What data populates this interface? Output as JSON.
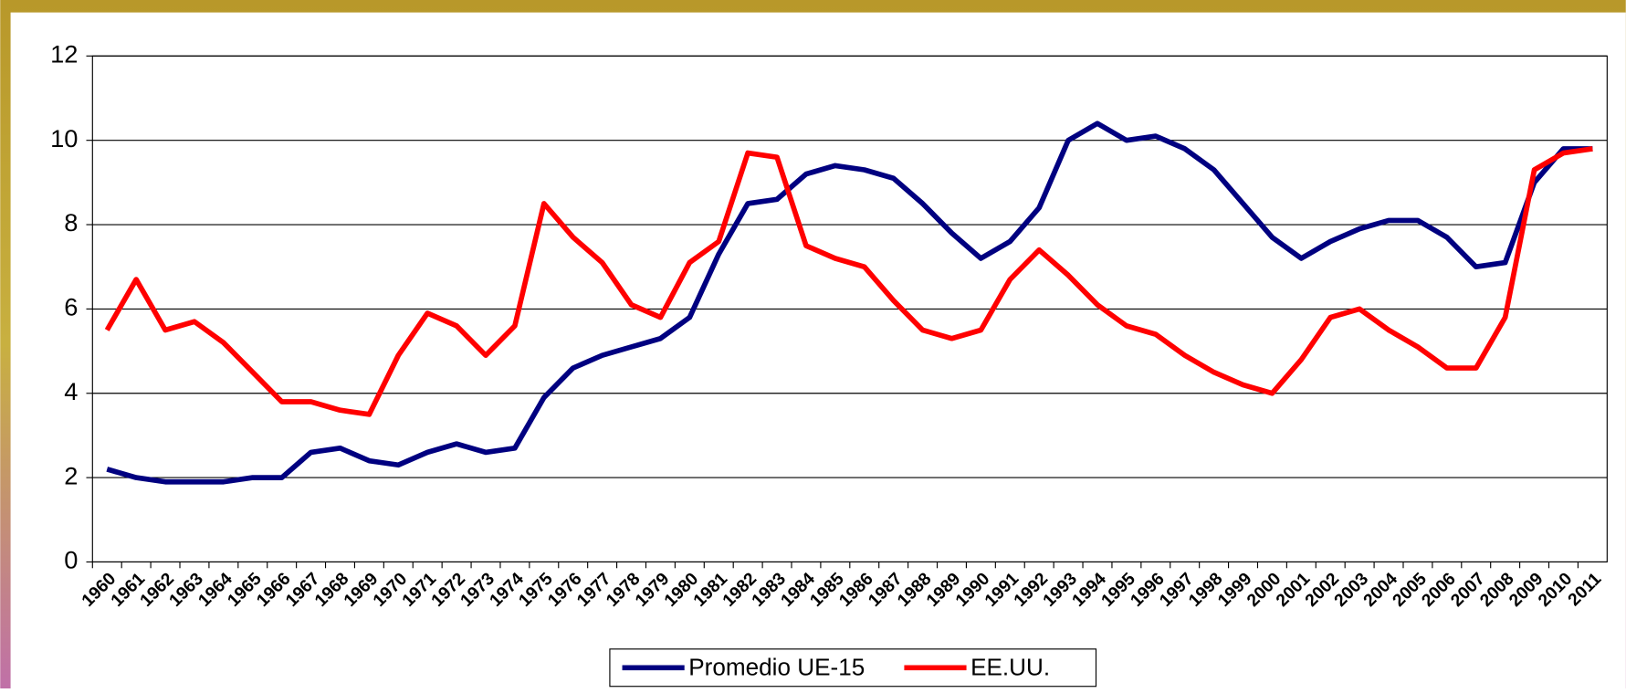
{
  "chart_data": {
    "type": "line",
    "categories": [
      "1960",
      "1961",
      "1962",
      "1963",
      "1964",
      "1965",
      "1966",
      "1967",
      "1968",
      "1969",
      "1970",
      "1971",
      "1972",
      "1973",
      "1974",
      "1975",
      "1976",
      "1977",
      "1978",
      "1979",
      "1980",
      "1981",
      "1982",
      "1983",
      "1984",
      "1985",
      "1986",
      "1987",
      "1988",
      "1989",
      "1990",
      "1991",
      "1992",
      "1993",
      "1994",
      "1995",
      "1996",
      "1997",
      "1998",
      "1999",
      "2000",
      "2001",
      "2002",
      "2003",
      "2004",
      "2005",
      "2006",
      "2007",
      "2008",
      "2009",
      "2010",
      "2011"
    ],
    "series": [
      {
        "name": "Promedio UE-15",
        "color": "#000080",
        "values": [
          2.2,
          2.0,
          1.9,
          1.9,
          1.9,
          2.0,
          2.0,
          2.6,
          2.7,
          2.4,
          2.3,
          2.6,
          2.8,
          2.6,
          2.7,
          3.9,
          4.6,
          4.9,
          5.1,
          5.3,
          5.8,
          7.3,
          8.5,
          8.6,
          9.2,
          9.4,
          9.3,
          9.1,
          8.5,
          7.8,
          7.2,
          7.6,
          8.4,
          10.0,
          10.4,
          10.0,
          10.1,
          9.8,
          9.3,
          8.5,
          7.7,
          7.2,
          7.6,
          7.9,
          8.1,
          8.1,
          7.7,
          7.0,
          7.1,
          9.0,
          9.8,
          9.8
        ]
      },
      {
        "name": "EE.UU.",
        "color": "#ff0000",
        "values": [
          5.5,
          6.7,
          5.5,
          5.7,
          5.2,
          4.5,
          3.8,
          3.8,
          3.6,
          3.5,
          4.9,
          5.9,
          5.6,
          4.9,
          5.6,
          8.5,
          7.7,
          7.1,
          6.1,
          5.8,
          7.1,
          7.6,
          9.7,
          9.6,
          7.5,
          7.2,
          7.0,
          6.2,
          5.5,
          5.3,
          5.5,
          6.7,
          7.4,
          6.8,
          6.1,
          5.6,
          5.4,
          4.9,
          4.5,
          4.2,
          4.0,
          4.8,
          5.8,
          6.0,
          5.5,
          5.1,
          4.6,
          4.6,
          5.8,
          9.3,
          9.7,
          9.8
        ]
      }
    ],
    "ylim": [
      0,
      12
    ],
    "yticks": [
      0,
      2,
      4,
      6,
      8,
      10,
      12
    ],
    "grid": true,
    "legend": "bottom"
  }
}
